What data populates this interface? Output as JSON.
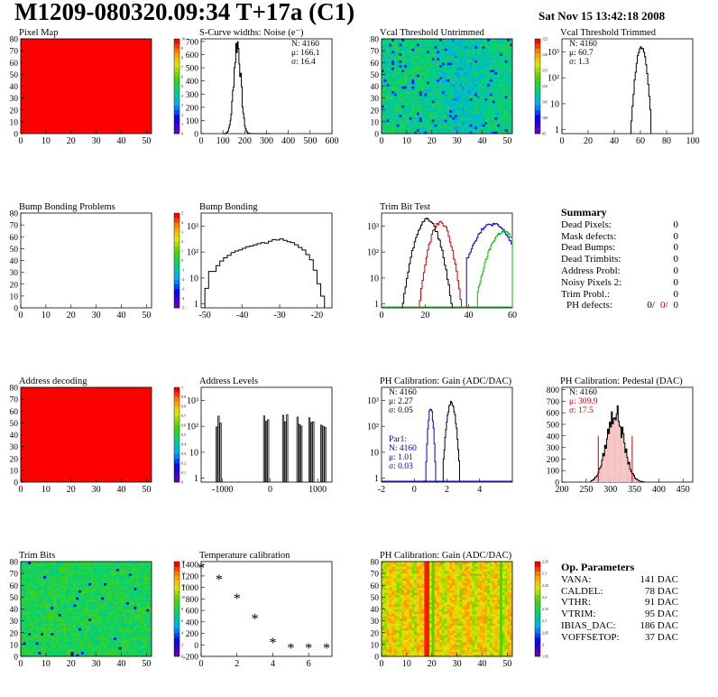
{
  "header": {
    "title": "M1209-080320.09:34 T+17a (C1)",
    "date": "Sat Nov 15 13:42:18 2008"
  },
  "colors": {
    "line_black": "#000000",
    "line_red": "#cc0000",
    "line_blue": "#0000cc",
    "line_green": "#00bb00",
    "map_red": "#ff0000"
  },
  "chart_data": [
    {
      "type": "heatmap",
      "title": "Pixel Map",
      "x_ticks": [
        "0",
        "10",
        "20",
        "30",
        "40",
        "50"
      ],
      "y_ticks": [
        "0",
        "10",
        "20",
        "30",
        "40",
        "50",
        "60",
        "70",
        "80"
      ],
      "xlim": [
        0,
        52
      ],
      "ylim": [
        0,
        80
      ],
      "fill": "uniform-red",
      "colorbar_ticks": [
        "0",
        "1",
        "2",
        "3",
        "4",
        "5",
        "6",
        "7",
        "8",
        "9",
        "10"
      ]
    },
    {
      "type": "histogram",
      "title": "S-Curve widths: Noise (e⁻)",
      "x_ticks": [
        "0",
        "100",
        "200",
        "300",
        "400",
        "500",
        "600"
      ],
      "y_ticks": [
        "0",
        "100",
        "200",
        "300",
        "400",
        "500",
        "600",
        "700"
      ],
      "xlim": [
        0,
        600
      ],
      "ylim": [
        0,
        720
      ],
      "stats": [
        "N: 4160",
        "μ: 166.1",
        "σ: 16.4"
      ],
      "peak": {
        "mean": 166,
        "sigma": 16,
        "height": 690
      }
    },
    {
      "type": "heatmap",
      "title": "Vcal Threshold Untrimmed",
      "x_ticks": [
        "0",
        "10",
        "20",
        "30",
        "40",
        "50"
      ],
      "y_ticks": [
        "0",
        "10",
        "20",
        "30",
        "40",
        "50",
        "60",
        "70",
        "80"
      ],
      "xlim": [
        0,
        52
      ],
      "ylim": [
        0,
        80
      ],
      "fill": "noise-green-blue",
      "colorbar_ticks": [
        "95",
        "100",
        "105",
        "110",
        "115",
        "120",
        "125"
      ]
    },
    {
      "type": "histogram",
      "title": "Vcal Threshold Trimmed",
      "log_y": true,
      "x_ticks": [
        "0",
        "20",
        "40",
        "60",
        "80",
        "100"
      ],
      "y_ticks": [
        "1",
        "10",
        "10²",
        "10³"
      ],
      "xlim": [
        0,
        100
      ],
      "stats": [
        "N: 4160",
        "μ: 60.7",
        "σ: 1.3"
      ],
      "peak": {
        "mean": 60.7,
        "sigma": 1.3,
        "height": 1500
      }
    },
    {
      "type": "heatmap",
      "title": "Bump Bonding Problems",
      "x_ticks": [
        "0",
        "10",
        "20",
        "30",
        "40",
        "50"
      ],
      "y_ticks": [
        "0",
        "10",
        "20",
        "30",
        "40",
        "50",
        "60",
        "70",
        "80"
      ],
      "xlim": [
        0,
        52
      ],
      "ylim": [
        0,
        80
      ],
      "fill": "empty",
      "colorbar_ticks": [
        "-5",
        "-4",
        "-3",
        "-2",
        "-1",
        "0",
        "1",
        "2",
        "3",
        "4",
        "5"
      ]
    },
    {
      "type": "histogram",
      "title": "Bump Bonding",
      "log_y": true,
      "x_ticks": [
        "-50",
        "-40",
        "-30",
        "-20"
      ],
      "y_ticks": [
        "1",
        "10",
        "10²",
        "10³"
      ],
      "xlim": [
        -51,
        -16
      ],
      "shape": "broad",
      "bins": [
        [
          -50,
          4
        ],
        [
          -49,
          18
        ],
        [
          -48,
          18
        ],
        [
          -47,
          30
        ],
        [
          -46,
          45
        ],
        [
          -45,
          60
        ],
        [
          -44,
          75
        ],
        [
          -43,
          95
        ],
        [
          -42,
          110
        ],
        [
          -41,
          120
        ],
        [
          -40,
          140
        ],
        [
          -39,
          160
        ],
        [
          -38,
          170
        ],
        [
          -37,
          190
        ],
        [
          -36,
          210
        ],
        [
          -35,
          230
        ],
        [
          -34,
          220
        ],
        [
          -33,
          260
        ],
        [
          -32,
          300
        ],
        [
          -31,
          290
        ],
        [
          -30,
          320
        ],
        [
          -29,
          280
        ],
        [
          -28,
          250
        ],
        [
          -27,
          230
        ],
        [
          -26,
          190
        ],
        [
          -25,
          150
        ],
        [
          -24,
          120
        ],
        [
          -23,
          80
        ],
        [
          -22,
          50
        ],
        [
          -21,
          20
        ],
        [
          -20,
          6
        ],
        [
          -19,
          2
        ]
      ]
    },
    {
      "type": "histogram",
      "title": "Trim Bit Test",
      "log_y": true,
      "x_ticks": [
        "0",
        "20",
        "40",
        "60"
      ],
      "y_ticks": [
        "1",
        "10",
        "10²",
        "10³"
      ],
      "xlim": [
        0,
        60
      ],
      "series": [
        {
          "name": "",
          "color": "#000000",
          "mean": 21,
          "sigma": 1.6,
          "height": 1800
        },
        {
          "name": "",
          "color": "#cc0000",
          "mean": 27,
          "sigma": 1.4,
          "height": 1400
        },
        {
          "name": "",
          "color": "#0000cc",
          "mean": 51,
          "sigma": 2.6,
          "height": 1200
        },
        {
          "name": "",
          "color": "#00bb00",
          "mean": 56,
          "sigma": 2.0,
          "height": 600
        }
      ]
    },
    {
      "type": "table",
      "title": "Summary",
      "rows": [
        {
          "label": "Dead Pixels:",
          "value": "0"
        },
        {
          "label": "Mask defects:",
          "value": "0"
        },
        {
          "label": "Dead Bumps:",
          "value": "0"
        },
        {
          "label": "Dead Trimbits:",
          "value": "0"
        },
        {
          "label": "Address Probl:",
          "value": "0"
        },
        {
          "label": "Noisy Pixels 2:",
          "value": "0"
        },
        {
          "label": "Trim Probl.:",
          "value": "0"
        }
      ],
      "ph_defects": {
        "label": "PH defects:",
        "values": [
          "0/",
          "0/",
          "0"
        ]
      }
    },
    {
      "type": "heatmap",
      "title": "Address decoding",
      "x_ticks": [
        "0",
        "10",
        "20",
        "30",
        "40",
        "50"
      ],
      "y_ticks": [
        "0",
        "10",
        "20",
        "30",
        "40",
        "50",
        "60",
        "70",
        "80"
      ],
      "xlim": [
        0,
        52
      ],
      "ylim": [
        0,
        80
      ],
      "fill": "uniform-red",
      "colorbar_ticks": [
        "0",
        "0.1",
        "0.2",
        "0.3",
        "0.4",
        "0.5",
        "0.6",
        "0.7",
        "0.8",
        "0.9",
        "1"
      ]
    },
    {
      "type": "histogram",
      "title": "Address Levels",
      "log_y": true,
      "x_ticks": [
        "-1000",
        "0",
        "1000"
      ],
      "y_ticks": [
        "1",
        "10",
        "10²",
        "10³"
      ],
      "xlim": [
        -1450,
        1300
      ],
      "spikes": [
        -1100,
        -100,
        300,
        600,
        850,
        1100
      ]
    },
    {
      "type": "histogram",
      "title": "PH Calibration: Gain (ADC/DAC)",
      "log_y": true,
      "x_ticks": [
        "-2",
        "0",
        "2",
        "4"
      ],
      "y_ticks": [
        "1",
        "10",
        "10²",
        "10³"
      ],
      "xlim": [
        -2,
        6
      ],
      "stats": [
        "N: 4160",
        "μ: 2.27",
        "σ: 0.05"
      ],
      "stats_par1": [
        "Par1:",
        "N: 4160",
        "μ: 1.01",
        "σ: 0.03"
      ],
      "series": [
        {
          "name": "",
          "color": "#000000",
          "mean": 2.27,
          "sigma": 0.05,
          "height": 800
        },
        {
          "name": "",
          "color": "#0000cc",
          "mean": 1.01,
          "sigma": 0.03,
          "height": 500
        }
      ]
    },
    {
      "type": "histogram",
      "title": "PH Calibration: Pedestal (DAC)",
      "x_ticks": [
        "200",
        "250",
        "300",
        "350",
        "400",
        "450"
      ],
      "y_ticks": [
        "0",
        "100",
        "200",
        "300",
        "400",
        "500",
        "600",
        "700",
        "800"
      ],
      "xlim": [
        200,
        470
      ],
      "ylim": [
        0,
        820
      ],
      "stats": [
        "N: 4160",
        "μ: 309.9",
        "σ: 17.5"
      ],
      "peak": {
        "mean": 309.9,
        "sigma": 17.5,
        "height": 600
      }
    },
    {
      "type": "heatmap",
      "title": "Trim Bits",
      "x_ticks": [
        "0",
        "10",
        "20",
        "30",
        "40",
        "50"
      ],
      "y_ticks": [
        "0",
        "10",
        "20",
        "30",
        "40",
        "50",
        "60",
        "70",
        "80"
      ],
      "xlim": [
        0,
        52
      ],
      "ylim": [
        0,
        80
      ],
      "fill": "noise-green",
      "colorbar_ticks": [
        "0",
        "2",
        "4",
        "6",
        "8",
        "10",
        "12",
        "14",
        "16"
      ]
    },
    {
      "type": "scatter",
      "title": "Temperature calibration",
      "x_ticks": [
        "0",
        "2",
        "4",
        "6"
      ],
      "y_ticks": [
        "-200",
        "0",
        "200",
        "400",
        "600",
        "800",
        "1000",
        "1200",
        "1400"
      ],
      "xlim": [
        0,
        7.3
      ],
      "ylim": [
        -200,
        1450
      ],
      "x": [
        0,
        1,
        2,
        3,
        4,
        5,
        6,
        7
      ],
      "y": [
        1350,
        1150,
        820,
        470,
        50,
        -40,
        -40,
        -40
      ]
    },
    {
      "type": "heatmap",
      "title": "PH Calibration: Gain (ADC/DAC)",
      "x_ticks": [
        "0",
        "10",
        "20",
        "30",
        "40",
        "50"
      ],
      "y_ticks": [
        "0",
        "10",
        "20",
        "30",
        "40",
        "50",
        "60",
        "70",
        "80"
      ],
      "xlim": [
        0,
        52
      ],
      "ylim": [
        0,
        80
      ],
      "fill": "noise-red-yellow",
      "colorbar_ticks": [
        "1.95",
        "2",
        "2.05",
        "2.1",
        "2.15",
        "2.2",
        "2.25",
        "2.3",
        "2.35"
      ]
    },
    {
      "type": "table",
      "title": "Op. Parameters",
      "rows": [
        {
          "label": "VANA:",
          "value": "141 DAC"
        },
        {
          "label": "CALDEL:",
          "value": "78 DAC"
        },
        {
          "label": "VTHR:",
          "value": "91 DAC"
        },
        {
          "label": "VTRIM:",
          "value": "95 DAC"
        },
        {
          "label": "IBIAS_DAC:",
          "value": "186 DAC"
        },
        {
          "label": "VOFFSETOP:",
          "value": "37 DAC"
        }
      ]
    }
  ]
}
